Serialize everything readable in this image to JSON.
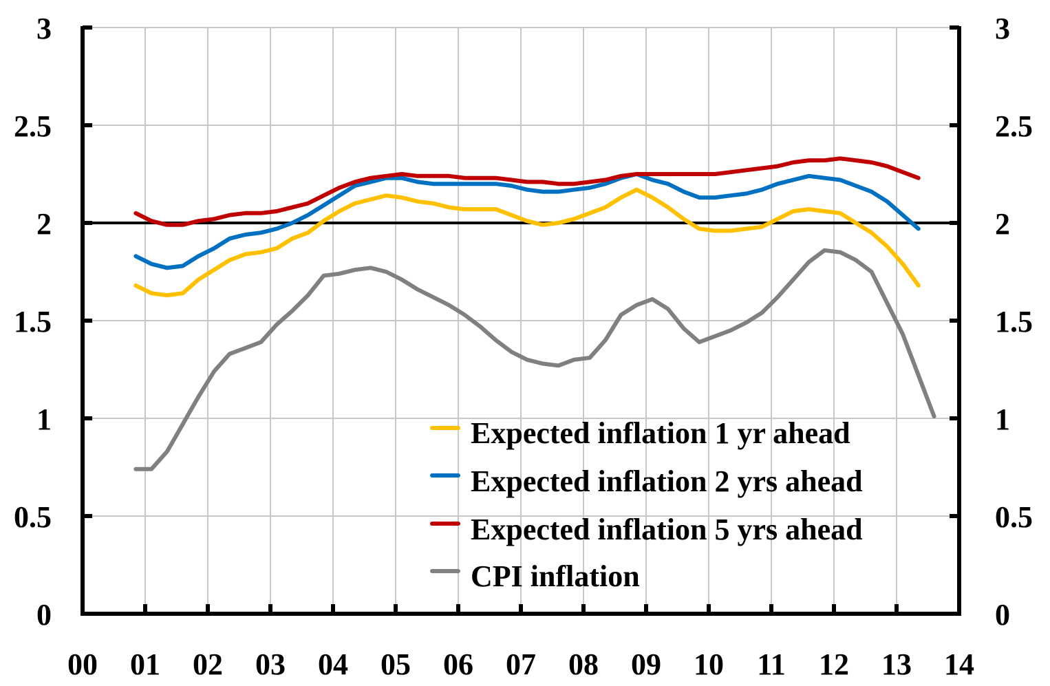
{
  "chart_data": {
    "type": "line",
    "title": "",
    "xlabel": "",
    "ylabel": "",
    "ylim": [
      0,
      3
    ],
    "y_ticks": [
      0,
      0.5,
      1,
      1.5,
      2,
      2.5,
      3
    ],
    "y_tick_labels": [
      "0",
      "0.5",
      "1",
      "1.5",
      "2",
      "2.5",
      "3"
    ],
    "xlim": [
      2000,
      2014
    ],
    "x_ticks": [
      2000,
      2001,
      2002,
      2003,
      2004,
      2005,
      2006,
      2007,
      2008,
      2009,
      2010,
      2011,
      2012,
      2013,
      2014
    ],
    "x_tick_labels": [
      "00",
      "01",
      "02",
      "03",
      "04",
      "05",
      "06",
      "07",
      "08",
      "09",
      "10",
      "11",
      "12",
      "13",
      "14"
    ],
    "dual_y_axis_mirror": true,
    "grid": true,
    "reference_line": {
      "y": 2,
      "color": "#000000"
    },
    "legend_position": "bottom-right",
    "x_start": 2000.85,
    "x_step": 0.25,
    "series": [
      {
        "name": "Expected inflation 1 yr ahead",
        "color": "#FFC000",
        "values": [
          1.68,
          1.64,
          1.63,
          1.64,
          1.71,
          1.76,
          1.81,
          1.84,
          1.85,
          1.87,
          1.92,
          1.95,
          2.01,
          2.06,
          2.1,
          2.12,
          2.14,
          2.13,
          2.11,
          2.1,
          2.08,
          2.07,
          2.07,
          2.07,
          2.04,
          2.01,
          1.99,
          2.0,
          2.02,
          2.05,
          2.08,
          2.13,
          2.17,
          2.13,
          2.08,
          2.02,
          1.97,
          1.96,
          1.96,
          1.97,
          1.98,
          2.02,
          2.06,
          2.07,
          2.06,
          2.05,
          2.0,
          1.95,
          1.88,
          1.79,
          1.68
        ]
      },
      {
        "name": "Expected inflation 2 yrs ahead",
        "color": "#0070C0",
        "values": [
          1.83,
          1.79,
          1.77,
          1.78,
          1.83,
          1.87,
          1.92,
          1.94,
          1.95,
          1.97,
          2.0,
          2.04,
          2.09,
          2.14,
          2.19,
          2.21,
          2.23,
          2.23,
          2.21,
          2.2,
          2.2,
          2.2,
          2.2,
          2.2,
          2.19,
          2.17,
          2.16,
          2.16,
          2.17,
          2.18,
          2.2,
          2.23,
          2.25,
          2.22,
          2.2,
          2.16,
          2.13,
          2.13,
          2.14,
          2.15,
          2.17,
          2.2,
          2.22,
          2.24,
          2.23,
          2.22,
          2.19,
          2.16,
          2.11,
          2.04,
          1.97
        ]
      },
      {
        "name": "Expected inflation 5 yrs ahead",
        "color": "#C00000",
        "values": [
          2.05,
          2.01,
          1.99,
          1.99,
          2.01,
          2.02,
          2.04,
          2.05,
          2.05,
          2.06,
          2.08,
          2.1,
          2.14,
          2.18,
          2.21,
          2.23,
          2.24,
          2.25,
          2.24,
          2.24,
          2.24,
          2.23,
          2.23,
          2.23,
          2.22,
          2.21,
          2.21,
          2.2,
          2.2,
          2.21,
          2.22,
          2.24,
          2.25,
          2.25,
          2.25,
          2.25,
          2.25,
          2.25,
          2.26,
          2.27,
          2.28,
          2.29,
          2.31,
          2.32,
          2.32,
          2.33,
          2.32,
          2.31,
          2.29,
          2.26,
          2.23
        ]
      },
      {
        "name": "CPI inflation",
        "color": "#808080",
        "values": [
          0.74,
          0.74,
          0.83,
          0.97,
          1.11,
          1.24,
          1.33,
          1.36,
          1.39,
          1.48,
          1.55,
          1.63,
          1.73,
          1.74,
          1.76,
          1.77,
          1.75,
          1.71,
          1.66,
          1.62,
          1.58,
          1.53,
          1.47,
          1.4,
          1.34,
          1.3,
          1.28,
          1.27,
          1.3,
          1.31,
          1.4,
          1.53,
          1.58,
          1.61,
          1.56,
          1.46,
          1.39,
          1.42,
          1.45,
          1.49,
          1.54,
          1.62,
          1.71,
          1.8,
          1.86,
          1.85,
          1.81,
          1.75,
          1.59,
          1.43,
          1.22,
          1.01
        ]
      }
    ]
  },
  "legend": {
    "items": [
      {
        "label": "Expected inflation 1 yr ahead",
        "color": "#FFC000"
      },
      {
        "label": "Expected inflation 2 yrs ahead",
        "color": "#0070C0"
      },
      {
        "label": "Expected inflation 5 yrs ahead",
        "color": "#C00000"
      },
      {
        "label": "CPI inflation",
        "color": "#808080"
      }
    ]
  }
}
